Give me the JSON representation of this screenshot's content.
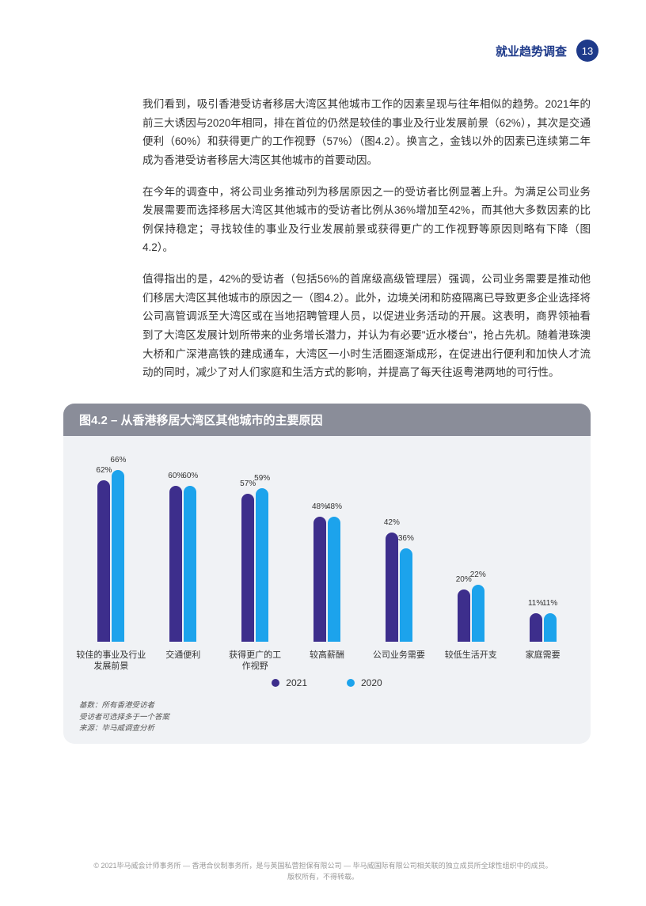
{
  "header": {
    "title": "就业趋势调查",
    "page": "13"
  },
  "paragraphs": {
    "p1": "我们看到，吸引香港受访者移居大湾区其他城市工作的因素呈现与往年相似的趋势。2021年的前三大诱因与2020年相同，排在首位的仍然是较佳的事业及行业发展前景（62%），其次是交通便利（60%）和获得更广的工作视野（57%）（图4.2）。换言之，金钱以外的因素已连续第二年成为香港受访者移居大湾区其他城市的首要动因。",
    "p2": "在今年的调查中，将公司业务推动列为移居原因之一的受访者比例显著上升。为满足公司业务发展需要而选择移居大湾区其他城市的受访者比例从36%增加至42%，而其他大多数因素的比例保持稳定；寻找较佳的事业及行业发展前景或获得更广的工作视野等原因则略有下降（图4.2）。",
    "p3": "值得指出的是，42%的受访者（包括56%的首席级高级管理层）强调，公司业务需要是推动他们移居大湾区其他城市的原因之一（图4.2）。此外，边境关闭和防疫隔离已导致更多企业选择将公司高管调派至大湾区或在当地招聘管理人员，以促进业务活动的开展。这表明，商界领袖看到了大湾区发展计划所带来的业务增长潜力，并认为有必要\"近水楼台\"，抢占先机。随着港珠澳大桥和广深港高铁的建成通车，大湾区一小时生活圈逐渐成形，在促进出行便利和加快人才流动的同时，减少了对人们家庭和生活方式的影响，并提高了每天往返粤港两地的可行性。"
  },
  "chart": {
    "title": "图4.2 – 从香港移居大湾区其他城市的主要原因",
    "type": "bar",
    "colors": {
      "series2021": "#3d2e8c",
      "series2020": "#1ca3ec"
    },
    "maxValue": 70,
    "categories": [
      {
        "label": "较佳的事业及行业\n发展前景",
        "v2021": 62,
        "v2020": 66
      },
      {
        "label": "交通便利",
        "v2021": 60,
        "v2020": 60
      },
      {
        "label": "获得更广的工\n作视野",
        "v2021": 57,
        "v2020": 59
      },
      {
        "label": "较高薪酬",
        "v2021": 48,
        "v2020": 48
      },
      {
        "label": "公司业务需要",
        "v2021": 42,
        "v2020": 36
      },
      {
        "label": "较低生活开支",
        "v2021": 20,
        "v2020": 22
      },
      {
        "label": "家庭需要",
        "v2021": 11,
        "v2020": 11
      }
    ],
    "legend": {
      "l2021": "2021",
      "l2020": "2020"
    },
    "notes": {
      "n1": "基数：所有香港受访者",
      "n2": "受访者可选择多于一个答案",
      "n3": "来源：毕马威调查分析"
    }
  },
  "footer": {
    "line1": "© 2021毕马威会计师事务所 — 香港合伙制事务所，是与英国私营担保有限公司 — 毕马威国际有限公司相关联的独立成员所全球性组织中的成员。",
    "line2": "版权所有，不得转载。"
  }
}
